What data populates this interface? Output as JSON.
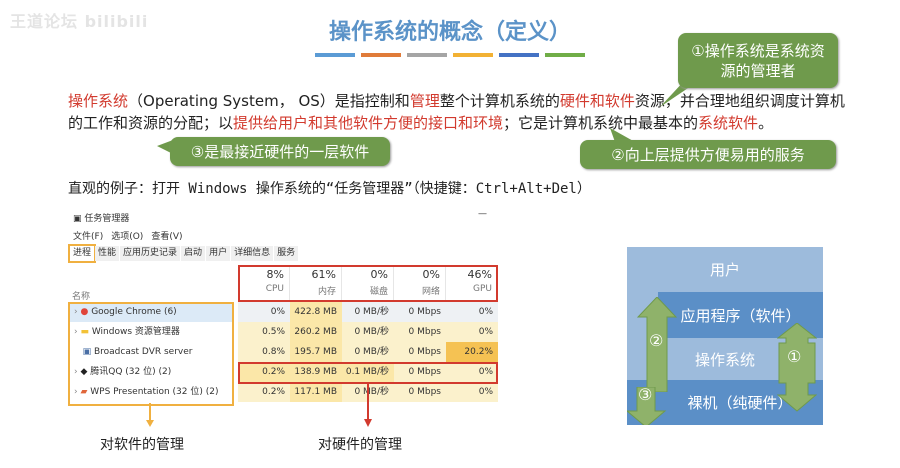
{
  "watermark": "王道论坛 bilibili",
  "title": "操作系统的概念（定义）",
  "title_bar_colors": [
    "#5b9bd5",
    "#e07b39",
    "#a5a5a5",
    "#f2b134",
    "#4472c4",
    "#70ad47"
  ],
  "bubbles": {
    "b1": "①操作系统是系统资源的管理者",
    "b2": "②向上层提供方便易用的服务",
    "b3": "③是最接近硬件的一层软件"
  },
  "paragraph": {
    "p1": "操作系统",
    "p2": "（Operating System， OS）是指控制和",
    "p3": "管理",
    "p4": "整个计算机系统的",
    "p5": "硬件和软件",
    "p6": "资源，并合理地组织调度计算机的工作和资源的分配；以",
    "p7": "提供给用户和其他软件方便的接口和环境",
    "p8": "；它是计算机系统中最基本的",
    "p9": "系统软件",
    "p10": "。"
  },
  "example": "直观的例子：打开 Windows 操作系统的“任务管理器”（快捷键：Ctrl+Alt+Del）",
  "task_manager": {
    "window_title": "任务管理器",
    "minimize": "—",
    "menu": [
      "文件(F)",
      "选项(O)",
      "查看(V)"
    ],
    "tabs": [
      "进程",
      "性能",
      "应用历史记录",
      "启动",
      "用户",
      "详细信息",
      "服务"
    ],
    "name_header": "名称",
    "columns": [
      {
        "value": "8%",
        "label": "CPU"
      },
      {
        "value": "61%",
        "label": "内存"
      },
      {
        "value": "0%",
        "label": "磁盘"
      },
      {
        "value": "0%",
        "label": "网络"
      },
      {
        "value": "46%",
        "label": "GPU"
      }
    ],
    "rows": [
      {
        "name": "Google Chrome (6)",
        "icon": "chrome-icon",
        "cells": [
          "0%",
          "422.8 MB",
          "0 MB/秒",
          "0 Mbps",
          "0%"
        ]
      },
      {
        "name": "Windows 资源管理器",
        "icon": "folder-icon",
        "cells": [
          "0.5%",
          "260.2 MB",
          "0 MB/秒",
          "0 Mbps",
          "0%"
        ]
      },
      {
        "name": "Broadcast DVR server",
        "icon": "window-icon",
        "cells": [
          "0.8%",
          "195.7 MB",
          "0 MB/秒",
          "0 Mbps",
          "20.2%"
        ]
      },
      {
        "name": "腾讯QQ (32 位) (2)",
        "icon": "qq-icon",
        "cells": [
          "0.2%",
          "138.9 MB",
          "0.1 MB/秒",
          "0 Mbps",
          "0%"
        ]
      },
      {
        "name": "WPS Presentation (32 位) (2)",
        "icon": "wps-icon",
        "cells": [
          "0.2%",
          "117.1 MB",
          "0 MB/秒",
          "0 Mbps",
          "0%"
        ]
      }
    ]
  },
  "labels": {
    "software": "对软件的管理",
    "hardware": "对硬件的管理"
  },
  "diagram": {
    "user": "用户",
    "app": "应用程序（软件）",
    "os": "操作系统",
    "hw": "裸机（纯硬件）",
    "n1": "①",
    "n2": "②",
    "n3": "③"
  },
  "colors": {
    "accent_red": "#d23a2e",
    "bubble_green": "#6f9a4c",
    "title_blue": "#5b93c8",
    "highlight_orange": "#f0b040",
    "highlight_red": "#d23a2e"
  }
}
